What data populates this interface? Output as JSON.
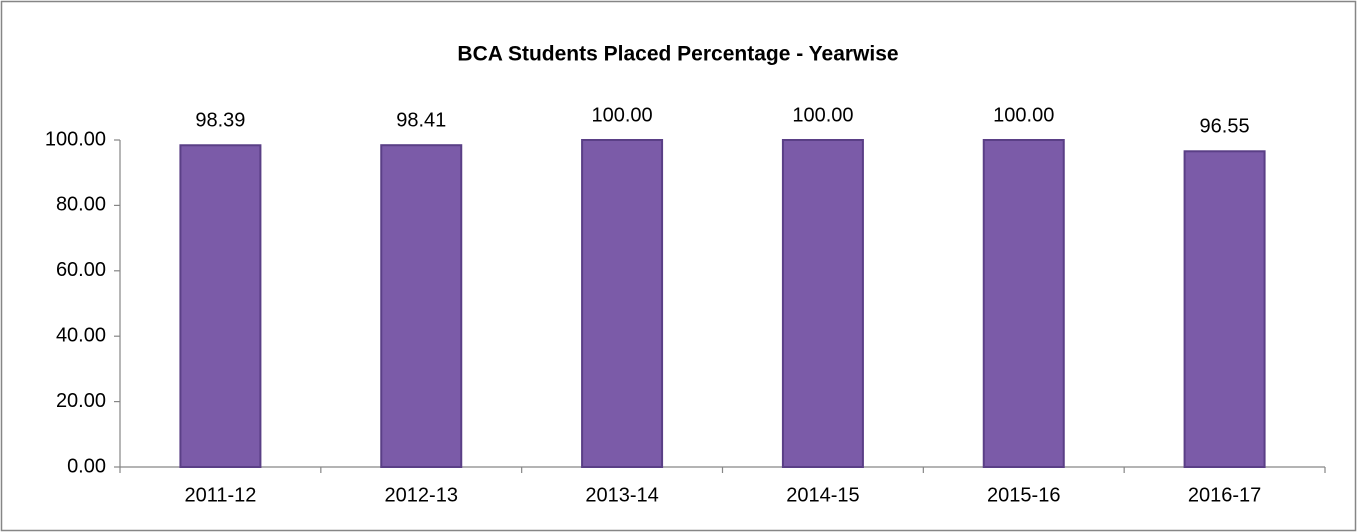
{
  "chart_data": {
    "type": "bar",
    "title": "BCA Students Placed Percentage - Yearwise",
    "categories": [
      "2011-12",
      "2012-13",
      "2013-14",
      "2014-15",
      "2015-16",
      "2016-17"
    ],
    "values": [
      98.39,
      98.41,
      100,
      100,
      100,
      96.55
    ],
    "value_labels": [
      "98.39",
      "98.41",
      "100.00",
      "100.00",
      "100.00",
      "96.55"
    ],
    "color": "#7b5ba8",
    "ylim": [
      0,
      100
    ],
    "yticks": [
      {
        "value": 0,
        "label": "0.00"
      },
      {
        "value": 20,
        "label": "20.00"
      },
      {
        "value": 40,
        "label": "40.00"
      },
      {
        "value": 60,
        "label": "60.00"
      },
      {
        "value": 80,
        "label": "80.00"
      },
      {
        "value": 100,
        "label": "100.00"
      }
    ],
    "grid": false
  }
}
